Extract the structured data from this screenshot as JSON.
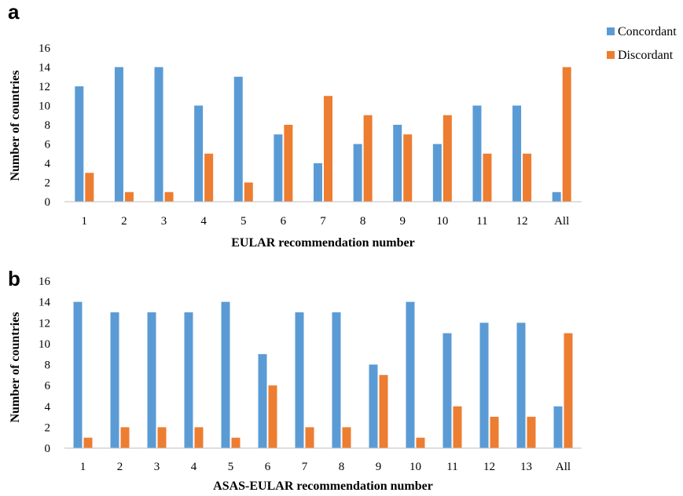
{
  "legend": {
    "entries": [
      "Concordant",
      "Discordant"
    ]
  },
  "colors": {
    "concordant": "#5B9BD5",
    "discordant": "#ED7D31"
  },
  "chart_data": [
    {
      "type": "bar",
      "panel": "a",
      "xlabel": "EULAR recommendation number",
      "ylabel": "Number of countries",
      "ylim": [
        0,
        16
      ],
      "yticks": [
        0,
        2,
        4,
        6,
        8,
        10,
        12,
        14,
        16
      ],
      "categories": [
        "1",
        "2",
        "3",
        "4",
        "5",
        "6",
        "7",
        "8",
        "9",
        "10",
        "11",
        "12",
        "All"
      ],
      "series": [
        {
          "name": "Concordant",
          "values": [
            12,
            14,
            14,
            10,
            13,
            7,
            4,
            6,
            8,
            6,
            10,
            10,
            1
          ]
        },
        {
          "name": "Discordant",
          "values": [
            3,
            1,
            1,
            5,
            2,
            8,
            11,
            9,
            7,
            9,
            5,
            5,
            14
          ]
        }
      ],
      "grid": false,
      "legend_position": "top-right"
    },
    {
      "type": "bar",
      "panel": "b",
      "xlabel": "ASAS-EULAR recommendation number",
      "ylabel": "Number of  countries",
      "ylim": [
        0,
        16
      ],
      "yticks": [
        0,
        2,
        4,
        6,
        8,
        10,
        12,
        14,
        16
      ],
      "categories": [
        "1",
        "2",
        "3",
        "4",
        "5",
        "6",
        "7",
        "8",
        "9",
        "10",
        "11",
        "12",
        "13",
        "All"
      ],
      "series": [
        {
          "name": "Concordant",
          "values": [
            14,
            13,
            13,
            13,
            14,
            9,
            13,
            13,
            8,
            14,
            11,
            12,
            12,
            4
          ]
        },
        {
          "name": "Discordant",
          "values": [
            1,
            2,
            2,
            2,
            1,
            6,
            2,
            2,
            7,
            1,
            4,
            3,
            3,
            11
          ]
        }
      ],
      "grid": false
    }
  ]
}
